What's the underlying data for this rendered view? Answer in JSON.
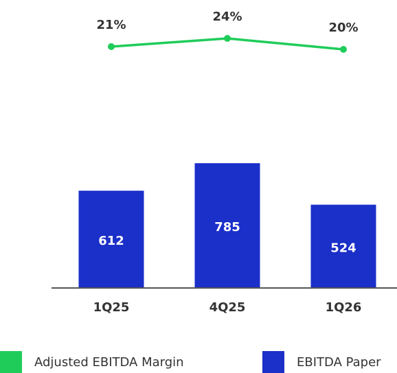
{
  "chart_data": {
    "type": "bar",
    "categories": [
      "1Q25",
      "4Q25",
      "1Q26"
    ],
    "series": [
      {
        "name": "EBITDA Paper",
        "type": "bar",
        "color": "#1b2fc9",
        "values": [
          612,
          785,
          524
        ]
      },
      {
        "name": "Adjusted EBITDA Margin",
        "type": "line",
        "color": "#1fcc5a",
        "values": [
          21,
          24,
          20
        ],
        "value_labels": [
          "21%",
          "24%",
          "20%"
        ]
      }
    ]
  }
}
